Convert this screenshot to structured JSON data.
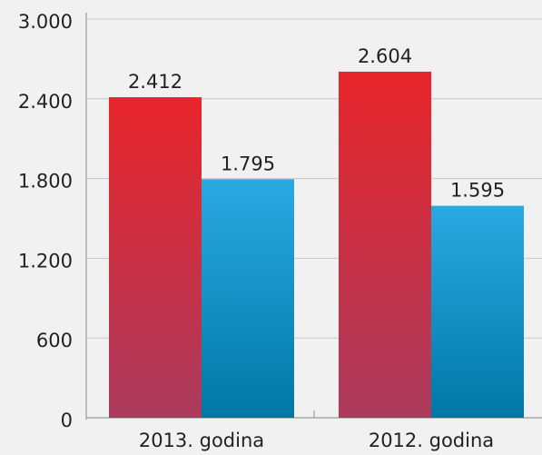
{
  "chart_data": {
    "type": "bar",
    "categories": [
      "2013. godina",
      "2012. godina"
    ],
    "series": [
      {
        "color": "#e8262b",
        "gradient_end": "#ab3b5e",
        "values": [
          2412,
          2604
        ],
        "value_labels": [
          "2.412",
          "2.604"
        ]
      },
      {
        "color": "#2aa9e1",
        "gradient_end": "#0078a6",
        "values": [
          1795,
          1595
        ],
        "value_labels": [
          "1.795",
          "1.595"
        ]
      }
    ],
    "ylim": [
      0,
      3000
    ],
    "yticks": [
      {
        "value": 0,
        "label": "0"
      },
      {
        "value": 600,
        "label": "600"
      },
      {
        "value": 1200,
        "label": "1.200"
      },
      {
        "value": 1800,
        "label": "1.800"
      },
      {
        "value": 2400,
        "label": "2.400"
      },
      {
        "value": 3000,
        "label": "3.000"
      }
    ],
    "grid": true
  }
}
